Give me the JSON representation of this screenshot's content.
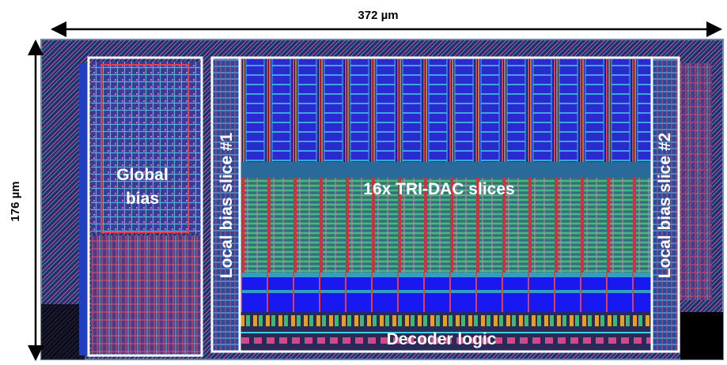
{
  "dimensions": {
    "width": "372 µm",
    "height": "176 µm"
  },
  "regions": {
    "global_bias": [
      "Global",
      "bias"
    ],
    "local_bias_1": "Local bias slice #1",
    "dac": "16x TRI-DAC slices",
    "local_bias_2": "Local bias slice #2",
    "decoder": "Decoder logic"
  }
}
